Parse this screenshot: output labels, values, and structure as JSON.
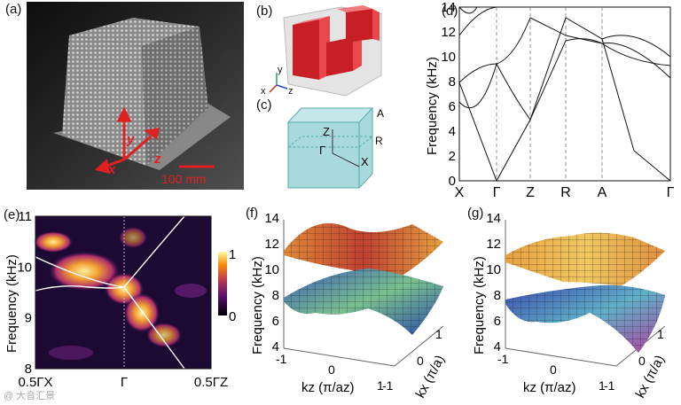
{
  "panel_labels": {
    "a": "(a)",
    "b": "(b)",
    "c": "(c)",
    "d": "(d)",
    "e": "(e)",
    "f": "(f)",
    "g": "(g)"
  },
  "panel_a": {
    "axis_y": "y",
    "axis_z": "z",
    "axis_x": "x",
    "scale_bar": "100 mm"
  },
  "panel_b": {
    "axis_y": "y",
    "axis_x": "x",
    "axis_z": "z"
  },
  "panel_c": {
    "points": [
      "A",
      "Z",
      "R",
      "Γ",
      "X"
    ]
  },
  "panel_d": {
    "ylabel": "Frequency (kHz)",
    "yticks": [
      "0",
      "2",
      "4",
      "6",
      "8",
      "10",
      "12",
      "14"
    ],
    "xticks": [
      "X",
      "Γ",
      "Z",
      "R",
      "A",
      "Γ"
    ]
  },
  "panel_e": {
    "ylabel": "Frequency (kHz)",
    "yticks": [
      "8",
      "9",
      "10",
      "11"
    ],
    "xticks": [
      "0.5ΓX",
      "Γ",
      "0.5ΓZ"
    ],
    "colorbar_ticks": [
      "1",
      "0"
    ]
  },
  "panel_f": {
    "zlabel": "Frequency (kHz)",
    "zticks": [
      "4",
      "6",
      "8",
      "10",
      "12",
      "14"
    ],
    "kz_label": "kz (π/az)",
    "kx_label": "kx (π/a)",
    "kz_ticks": [
      "-1",
      "0",
      "1"
    ],
    "kx_ticks": [
      "-1",
      "0",
      "1"
    ]
  },
  "panel_g": {
    "zlabel": "Frequency (kHz)",
    "zticks": [
      "4",
      "6",
      "8",
      "10",
      "12",
      "14"
    ],
    "kz_label": "kz (π/az)",
    "kx_label": "kx (π/a)",
    "kz_ticks": [
      "-1",
      "0",
      "1"
    ],
    "kx_ticks": [
      "-1",
      "0",
      "1"
    ]
  },
  "watermark": "@ 大音汇景",
  "colors": {
    "red_block": "#d8222a",
    "cube_fill": "#9fd8dc",
    "surf_high": "#e8a040",
    "surf_low": "#3f86c8",
    "photo_bg": "#1c1c1c"
  }
}
